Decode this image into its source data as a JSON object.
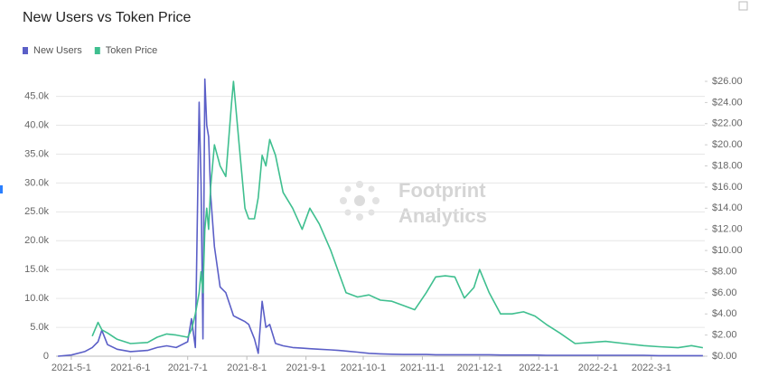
{
  "chart_data": {
    "type": "line",
    "title": "New Users vs Token Price",
    "watermark": [
      "Footprint",
      "Analytics"
    ],
    "x": [
      "2021-4-24",
      "2021-5-1",
      "2021-5-8",
      "2021-5-12",
      "2021-5-15",
      "2021-5-17",
      "2021-5-20",
      "2021-5-25",
      "2021-6-1",
      "2021-6-10",
      "2021-6-15",
      "2021-6-20",
      "2021-6-25",
      "2021-7-1",
      "2021-7-3",
      "2021-7-5",
      "2021-7-7",
      "2021-7-8",
      "2021-7-9",
      "2021-7-10",
      "2021-7-11",
      "2021-7-12",
      "2021-7-13",
      "2021-7-15",
      "2021-7-18",
      "2021-7-21",
      "2021-7-24",
      "2021-7-25",
      "2021-7-28",
      "2021-7-31",
      "2021-8-2",
      "2021-8-5",
      "2021-8-7",
      "2021-8-9",
      "2021-8-11",
      "2021-8-13",
      "2021-8-16",
      "2021-8-20",
      "2021-8-25",
      "2021-8-30",
      "2021-9-3",
      "2021-9-8",
      "2021-9-14",
      "2021-9-18",
      "2021-9-22",
      "2021-9-28",
      "2021-10-4",
      "2021-10-10",
      "2021-10-16",
      "2021-10-22",
      "2021-10-28",
      "2021-11-3",
      "2021-11-8",
      "2021-11-13",
      "2021-11-18",
      "2021-11-23",
      "2021-11-28",
      "2021-12-1",
      "2021-12-6",
      "2021-12-12",
      "2021-12-18",
      "2021-12-24",
      "2021-12-30",
      "2022-1-5",
      "2022-1-12",
      "2022-1-20",
      "2022-1-28",
      "2022-2-5",
      "2022-2-15",
      "2022-2-25",
      "2022-3-5",
      "2022-3-15",
      "2022-3-22",
      "2022-3-28"
    ],
    "series": [
      {
        "name": "New Users",
        "color": "#5b5fc7",
        "values": [
          0,
          200,
          800,
          1500,
          2500,
          4500,
          2000,
          1200,
          800,
          1000,
          1500,
          1800,
          1500,
          2500,
          6500,
          1500,
          44000,
          30000,
          3000,
          48000,
          40000,
          38000,
          28000,
          19000,
          12000,
          11000,
          8000,
          7000,
          6500,
          6000,
          5500,
          3000,
          500,
          9500,
          5000,
          5500,
          2200,
          1800,
          1500,
          1400,
          1300,
          1200,
          1100,
          1000,
          900,
          700,
          500,
          400,
          350,
          300,
          300,
          300,
          250,
          250,
          250,
          250,
          250,
          250,
          250,
          200,
          200,
          200,
          200,
          150,
          150,
          150,
          150,
          150,
          150,
          150,
          100,
          100,
          100,
          100
        ]
      },
      {
        "name": "Token Price",
        "color": "#3fbf8f",
        "axis": "y2",
        "values": [
          null,
          null,
          null,
          1.9,
          3.2,
          2.5,
          2.2,
          1.6,
          1.2,
          1.3,
          1.8,
          2.1,
          2.0,
          1.8,
          2.5,
          4.0,
          6.0,
          8.0,
          6.0,
          12,
          14,
          12,
          16,
          20,
          18,
          17,
          24,
          26,
          20,
          14,
          13,
          13,
          15,
          19,
          18,
          20.5,
          19,
          15.5,
          14,
          12,
          14,
          12.5,
          10,
          8,
          6,
          5.6,
          5.8,
          5.3,
          5.2,
          4.8,
          4.4,
          6.0,
          7.5,
          7.6,
          7.5,
          5.5,
          6.5,
          8.2,
          6.0,
          4.0,
          4.0,
          4.2,
          3.8,
          3.0,
          2.2,
          1.2,
          1.3,
          1.4,
          1.2,
          1.0,
          0.9,
          0.8,
          1.0,
          0.8
        ]
      }
    ],
    "xlim": [
      "2021-4-23",
      "2022-3-29"
    ],
    "xticks": [
      "2021-5-1",
      "2021-6-1",
      "2021-7-1",
      "2021-8-1",
      "2021-9-1",
      "2021-10-1",
      "2021-11-1",
      "2021-12-1",
      "2022-1-1",
      "2022-2-1",
      "2022-3-1"
    ],
    "ylim": [
      0,
      47600
    ],
    "yticks": [
      0,
      {
        "value": 5000,
        "label": "5.0k"
      },
      {
        "value": 10000,
        "label": "10.0k"
      },
      {
        "value": 15000,
        "label": "15.0k"
      },
      {
        "value": 20000,
        "label": "20.0k"
      },
      {
        "value": 25000,
        "label": "25.0k"
      },
      {
        "value": 30000,
        "label": "30.0k"
      },
      {
        "value": 35000,
        "label": "35.0k"
      },
      {
        "value": 40000,
        "label": "40.0k"
      },
      {
        "value": 45000,
        "label": "45.0k"
      }
    ],
    "y2lim": [
      0,
      26
    ],
    "y2ticks": [
      {
        "value": 0,
        "label": "$0.00"
      },
      {
        "value": 2,
        "label": "$2.00"
      },
      {
        "value": 4,
        "label": "$4.00"
      },
      {
        "value": 6,
        "label": "$6.00"
      },
      {
        "value": 8,
        "label": "$8.00"
      },
      {
        "value": 10,
        "label": "$10.00"
      },
      {
        "value": 12,
        "label": "$12.00"
      },
      {
        "value": 14,
        "label": "$14.00"
      },
      {
        "value": 16,
        "label": "$16.00"
      },
      {
        "value": 18,
        "label": "$18.00"
      },
      {
        "value": 20,
        "label": "$20.00"
      },
      {
        "value": 22,
        "label": "$22.00"
      },
      {
        "value": 24,
        "label": "$24.00"
      },
      {
        "value": 26,
        "label": "$26.00"
      }
    ],
    "grid": true
  }
}
